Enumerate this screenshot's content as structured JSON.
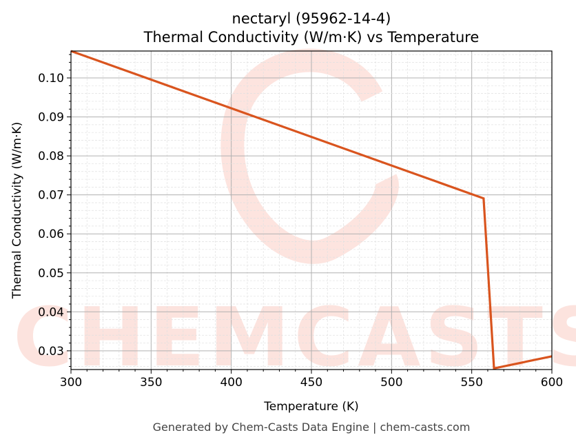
{
  "chart_data": {
    "type": "line",
    "title": "nectaryl (95962-14-4)",
    "subtitle": "Thermal Conductivity (W/m·K) vs Temperature",
    "xlabel": "Temperature (K)",
    "ylabel": "Thermal Conductivity (W/m·K)",
    "xlim": [
      300,
      600
    ],
    "ylim": [
      0.0252,
      0.1069
    ],
    "xticks": [
      300,
      350,
      400,
      450,
      500,
      550,
      600
    ],
    "yticks": [
      0.03,
      0.04,
      0.05,
      0.06,
      0.07,
      0.08,
      0.09,
      0.1
    ],
    "ytick_labels": [
      "0.03",
      "0.04",
      "0.05",
      "0.06",
      "0.07",
      "0.08",
      "0.09",
      "0.10"
    ],
    "grid": true,
    "series": [
      {
        "name": "Thermal Conductivity",
        "color": "#d9541e",
        "x": [
          300,
          557.4,
          563.9,
          600
        ],
        "y": [
          0.1069,
          0.0691,
          0.0255,
          0.0286
        ]
      }
    ],
    "watermark": "CHEMCASTS",
    "footer": "Generated by Chem-Casts Data Engine | chem-casts.com"
  }
}
